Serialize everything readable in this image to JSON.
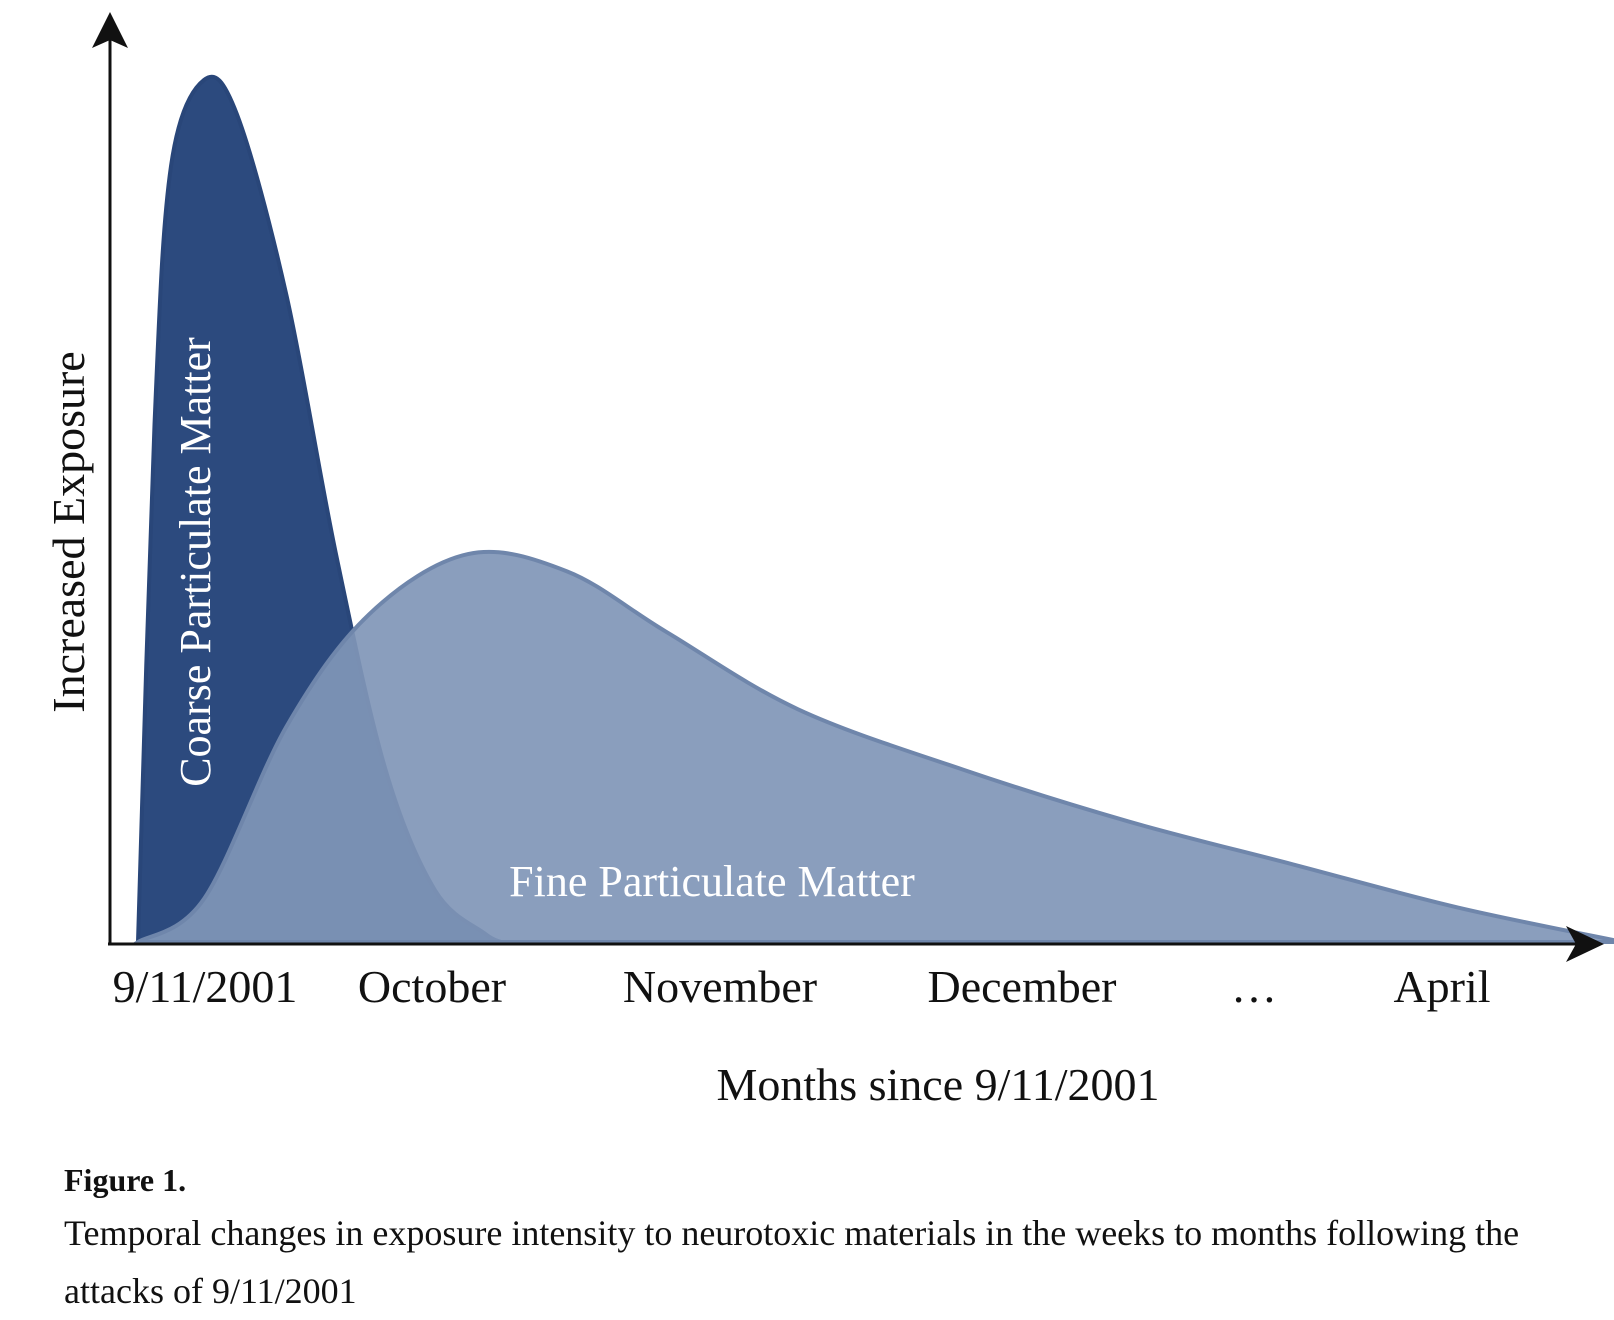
{
  "chart_data": {
    "type": "area",
    "xlabel": "Months since 9/11/2001",
    "ylabel": "Increased Exposure",
    "x_ticks": [
      "9/11/2001",
      "October",
      "November",
      "December",
      "…",
      "April"
    ],
    "axis_ticks_on_y": false,
    "grid": false,
    "series": [
      {
        "name": "Coarse Particulate Matter",
        "color": "#2c4a7e",
        "points": [
          {
            "x": 0.0,
            "y": 0.0
          },
          {
            "x": 0.05,
            "y": 0.6
          },
          {
            "x": 0.1,
            "y": 0.9
          },
          {
            "x": 0.2,
            "y": 1.0
          },
          {
            "x": 0.3,
            "y": 0.96
          },
          {
            "x": 0.45,
            "y": 0.75
          },
          {
            "x": 0.6,
            "y": 0.45
          },
          {
            "x": 0.75,
            "y": 0.2
          },
          {
            "x": 0.9,
            "y": 0.06
          },
          {
            "x": 1.05,
            "y": 0.01
          },
          {
            "x": 1.1,
            "y": 0.0
          }
        ]
      },
      {
        "name": "Fine Particulate Matter",
        "color": "#8096b7",
        "points": [
          {
            "x": 0.0,
            "y": 0.0
          },
          {
            "x": 0.2,
            "y": 0.05
          },
          {
            "x": 0.45,
            "y": 0.25
          },
          {
            "x": 0.7,
            "y": 0.38
          },
          {
            "x": 1.0,
            "y": 0.45
          },
          {
            "x": 1.3,
            "y": 0.43
          },
          {
            "x": 1.6,
            "y": 0.36
          },
          {
            "x": 2.0,
            "y": 0.27
          },
          {
            "x": 2.5,
            "y": 0.2
          },
          {
            "x": 3.0,
            "y": 0.14
          },
          {
            "x": 3.5,
            "y": 0.09
          },
          {
            "x": 4.0,
            "y": 0.04
          },
          {
            "x": 4.5,
            "y": 0.0
          }
        ]
      }
    ]
  },
  "caption": {
    "label": "Figure 1.",
    "text": "Temporal changes in exposure intensity to neurotoxic materials in the weeks to months following the attacks of 9/11/2001"
  }
}
